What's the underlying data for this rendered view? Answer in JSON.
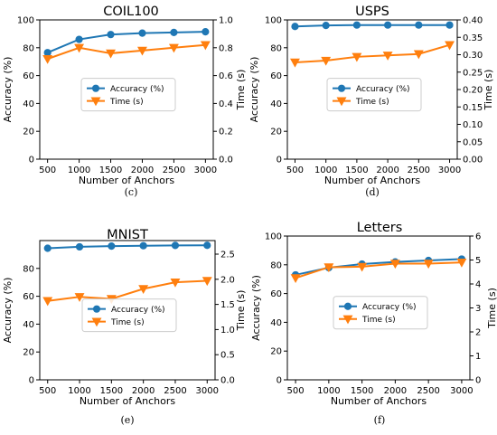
{
  "chart_data": [
    {
      "type": "line",
      "title": "COIL100",
      "caption": "(c)",
      "xlabel": "Number of Anchors",
      "ylabel": "Accuracy (%)",
      "y2label": "Time (s)",
      "x": [
        500,
        1000,
        1500,
        2000,
        2500,
        3000
      ],
      "xticks": [
        "500",
        "1000",
        "1500",
        "2000",
        "2500",
        "3000"
      ],
      "ylim": [
        0,
        100
      ],
      "yticks": [
        "0",
        "20",
        "40",
        "60",
        "80",
        "100"
      ],
      "y2lim": [
        0,
        1.0
      ],
      "y2ticks": [
        "0.0",
        "0.2",
        "0.4",
        "0.6",
        "0.8",
        "1.0"
      ],
      "legend_position": "center",
      "series": [
        {
          "name": "Accuracy (%)",
          "axis": "left",
          "color": "#1f77b4",
          "marker": "circle",
          "values": [
            76.5,
            86,
            89.5,
            90.5,
            91,
            91.5
          ]
        },
        {
          "name": "Time (s)",
          "axis": "right",
          "color": "#ff7f0e",
          "marker": "triangle-down",
          "values": [
            0.72,
            0.8,
            0.76,
            0.78,
            0.8,
            0.82
          ]
        }
      ]
    },
    {
      "type": "line",
      "title": "USPS",
      "caption": "(d)",
      "xlabel": "Number of Anchors",
      "ylabel": "Accuracy (%)",
      "y2label": "Time (s)",
      "x": [
        500,
        1000,
        1500,
        2000,
        2500,
        3000
      ],
      "xticks": [
        "500",
        "1000",
        "1500",
        "2000",
        "2500",
        "3000"
      ],
      "ylim": [
        0,
        100
      ],
      "yticks": [
        "0",
        "20",
        "40",
        "60",
        "80",
        "100"
      ],
      "y2lim": [
        0,
        0.4
      ],
      "y2ticks": [
        "0.00",
        "0.05",
        "0.10",
        "0.15",
        "0.20",
        "0.25",
        "0.30",
        "0.35",
        "0.40"
      ],
      "legend_position": "center",
      "series": [
        {
          "name": "Accuracy (%)",
          "axis": "left",
          "color": "#1f77b4",
          "marker": "circle",
          "values": [
            95.3,
            96,
            96.3,
            96.3,
            96.3,
            96.3
          ]
        },
        {
          "name": "Time (s)",
          "axis": "right",
          "color": "#ff7f0e",
          "marker": "triangle-down",
          "values": [
            0.278,
            0.283,
            0.294,
            0.298,
            0.302,
            0.328
          ]
        }
      ]
    },
    {
      "type": "line",
      "title": "MNIST",
      "caption": "(e)",
      "xlabel": "Number of Anchors",
      "ylabel": "Accuracy (%)",
      "y2label": "Time (s)",
      "x": [
        500,
        1000,
        1500,
        2000,
        2500,
        3000
      ],
      "xticks": [
        "500",
        "1000",
        "1500",
        "2000",
        "2500",
        "3000"
      ],
      "ylim": [
        0,
        100
      ],
      "yticks": [
        "0",
        "20",
        "40",
        "60",
        "80"
      ],
      "y2lim": [
        0,
        2.77
      ],
      "y2ticks": [
        "0.0",
        "0.5",
        "1.0",
        "1.5",
        "2.0",
        "2.5"
      ],
      "legend_position": "center",
      "series": [
        {
          "name": "Accuracy (%)",
          "axis": "left",
          "color": "#1f77b4",
          "marker": "circle",
          "values": [
            94.5,
            95.5,
            96,
            96.3,
            96.5,
            96.6
          ]
        },
        {
          "name": "Time (s)",
          "axis": "right",
          "color": "#ff7f0e",
          "marker": "triangle-down",
          "values": [
            1.57,
            1.65,
            1.61,
            1.81,
            1.94,
            1.97
          ]
        }
      ]
    },
    {
      "type": "line",
      "title": "Letters",
      "caption": "(f)",
      "xlabel": "Number of Anchors",
      "ylabel": "Accuracy (%)",
      "y2label": "Time (s)",
      "x": [
        500,
        1000,
        1500,
        2000,
        2500,
        3000
      ],
      "xticks": [
        "500",
        "1000",
        "1500",
        "2000",
        "2500",
        "3000"
      ],
      "ylim": [
        0,
        100
      ],
      "yticks": [
        "0",
        "20",
        "40",
        "60",
        "80",
        "100"
      ],
      "y2lim": [
        0,
        6
      ],
      "y2ticks": [
        "0",
        "1",
        "2",
        "3",
        "4",
        "5",
        "6"
      ],
      "legend_position": "center",
      "series": [
        {
          "name": "Accuracy (%)",
          "axis": "left",
          "color": "#1f77b4",
          "marker": "circle",
          "values": [
            73,
            78,
            80.5,
            82,
            83,
            84
          ]
        },
        {
          "name": "Time (s)",
          "axis": "right",
          "color": "#ff7f0e",
          "marker": "triangle-down",
          "values": [
            4.25,
            4.7,
            4.72,
            4.85,
            4.85,
            4.9
          ]
        }
      ]
    }
  ]
}
